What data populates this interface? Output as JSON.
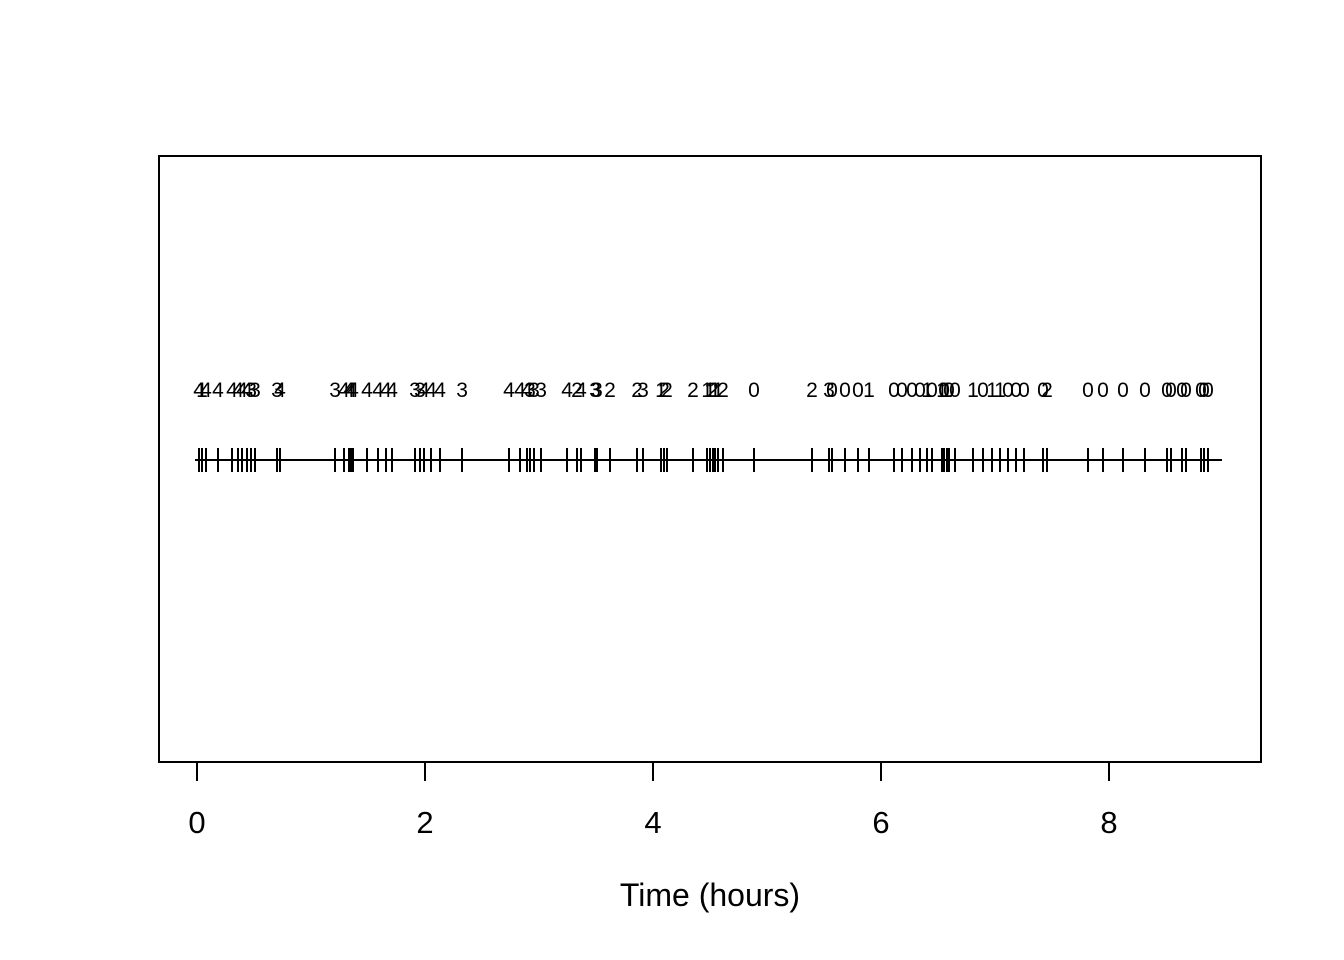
{
  "chart_data": {
    "type": "scatter",
    "subtype": "event-rug-timeline",
    "title": "",
    "xlabel": "Time (hours)",
    "ylabel": "",
    "xlim": [
      0,
      9
    ],
    "x_ticks": [
      0,
      2,
      4,
      6,
      8
    ],
    "grid": false,
    "legend": false,
    "marker": "vertical-tick",
    "line_extent": [
      -0.02,
      8.99
    ],
    "colors": {
      "foreground": "#000000",
      "background": "#ffffff"
    },
    "description": "Event times marked as vertical ticks on a horizontal line; the integer above each tick is the count/state recorded at that event time.",
    "events": {
      "times": [
        0.018,
        0.044,
        0.079,
        0.184,
        0.307,
        0.36,
        0.395,
        0.439,
        0.474,
        0.509,
        0.702,
        0.728,
        1.211,
        1.289,
        1.333,
        1.351,
        1.368,
        1.491,
        1.588,
        1.658,
        1.711,
        1.912,
        1.956,
        1.991,
        2.053,
        2.132,
        2.325,
        2.737,
        2.833,
        2.895,
        2.921,
        2.956,
        3.018,
        3.246,
        3.333,
        3.368,
        3.491,
        3.509,
        3.623,
        3.86,
        3.912,
        4.07,
        4.096,
        4.123,
        4.351,
        4.474,
        4.5,
        4.526,
        4.544,
        4.57,
        4.614,
        4.886,
        5.395,
        5.544,
        5.57,
        5.684,
        5.798,
        5.895,
        6.114,
        6.184,
        6.272,
        6.342,
        6.404,
        6.447,
        6.535,
        6.553,
        6.579,
        6.596,
        6.649,
        6.807,
        6.895,
        6.974,
        7.044,
        7.114,
        7.184,
        7.254,
        7.421,
        7.456,
        7.816,
        7.947,
        8.123,
        8.316,
        8.509,
        8.544,
        8.64,
        8.675,
        8.807,
        8.833,
        8.868
      ],
      "counts": [
        4,
        1,
        4,
        4,
        4,
        4,
        4,
        4,
        3,
        3,
        3,
        4,
        3,
        4,
        4,
        4,
        4,
        4,
        4,
        4,
        4,
        3,
        3,
        4,
        4,
        4,
        3,
        4,
        4,
        4,
        3,
        3,
        3,
        4,
        2,
        4,
        3,
        3,
        2,
        2,
        3,
        1,
        2,
        2,
        2,
        1,
        1,
        2,
        1,
        1,
        2,
        0,
        2,
        3,
        0,
        0,
        0,
        1,
        0,
        0,
        0,
        0,
        1,
        0,
        1,
        0,
        1,
        0,
        0,
        1,
        0,
        1,
        1,
        0,
        0,
        0,
        0,
        2,
        0,
        0,
        0,
        0,
        0,
        0,
        0,
        0,
        0,
        0,
        0
      ]
    }
  }
}
